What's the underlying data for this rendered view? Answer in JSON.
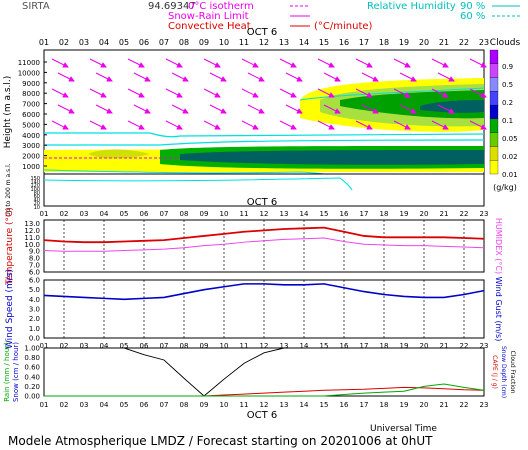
{
  "header": {
    "station": "SIRTA",
    "coords": "94.69347",
    "isotherm_label": "0°C isotherm",
    "snow_rain_label": "Snow-Rain Limit",
    "convective_label": "Convective Heat.",
    "convective_unit": "(°C/minute)",
    "rh_label": "Relative Humidity",
    "rh_90": "90 %",
    "rh_60": "60 %"
  },
  "footer": {
    "universal_time": "Universal Time",
    "model_title": "Modele Atmospherique LMDZ / Forecast starting on 20201006 at 0hUT"
  },
  "colors": {
    "cloud_light": "#ffff00",
    "cloud_mid": "#00b000",
    "cloud_dark": "#006060",
    "temperature": "#dd0000",
    "humidex": "#ee44ee",
    "wind": "#0000cc",
    "humidity": "#00e0e0",
    "isotherm": "#ff00ff",
    "snow": "#00aa00",
    "cloud_fraction": "#000000"
  },
  "chart_data": [
    {
      "type": "heatmap",
      "panel": "clouds",
      "date_label": "OCT 6",
      "x_hours": [
        "01",
        "02",
        "03",
        "04",
        "05",
        "06",
        "07",
        "08",
        "09",
        "10",
        "11",
        "12",
        "13",
        "14",
        "15",
        "16",
        "17",
        "18",
        "19",
        "20",
        "21",
        "22",
        "23"
      ],
      "ylabel": "Height (m a.s.l.)",
      "y_ticks_upper": [
        11000,
        10000,
        9000,
        8000,
        7000,
        6000,
        5000,
        4000,
        3000,
        2000,
        1000
      ],
      "y_ticks_lower": [
        150,
        140,
        120,
        100,
        80,
        60,
        40,
        20,
        10
      ],
      "ylabel_lower": "Up to 200 m a.s.l.",
      "colorbar_title": "Clouds",
      "colorbar_unit": "(g/kg)",
      "colorbar_ticks": [
        "0.9",
        "0.5",
        "0.2",
        "0.1",
        "0.05",
        "0.02",
        "0.01"
      ],
      "cloud_layers": [
        {
          "name": "upper",
          "x_start": 15,
          "x_end": 23,
          "base_m": 6800,
          "top_m": 9000
        },
        {
          "name": "low",
          "x_start": 7,
          "x_end": 23,
          "base_m": 900,
          "top_m": 2200
        },
        {
          "name": "early",
          "x_start": 1,
          "x_end": 8,
          "base_m": 1000,
          "top_m": 1800
        }
      ]
    },
    {
      "type": "line",
      "panel": "temperature",
      "xlabel": "",
      "ylabel": "Temperature (°C)",
      "ylabel_right": "HUMIDEX (°C)",
      "y_ticks": [
        "13.0",
        "12.0",
        "11.0",
        "10.0",
        "9.0",
        "8.0",
        "7.0",
        "6.0"
      ],
      "ylim": [
        6,
        13.5
      ],
      "x": [
        1,
        2,
        3,
        4,
        5,
        6,
        7,
        8,
        9,
        10,
        11,
        12,
        13,
        14,
        15,
        16,
        17,
        18,
        19,
        20,
        21,
        22,
        23
      ],
      "series": [
        {
          "name": "Temperature",
          "values": [
            10.6,
            10.4,
            10.3,
            10.3,
            10.4,
            10.5,
            10.6,
            10.9,
            11.2,
            11.5,
            11.8,
            12.0,
            12.2,
            12.3,
            12.4,
            11.8,
            11.2,
            11.0,
            11.0,
            11.0,
            11.0,
            10.9,
            10.8
          ]
        },
        {
          "name": "HUMIDEX",
          "values": [
            9.1,
            9.0,
            9.0,
            9.0,
            9.1,
            9.2,
            9.3,
            9.5,
            9.8,
            10.0,
            10.3,
            10.5,
            10.7,
            10.8,
            10.9,
            10.4,
            10.0,
            9.9,
            9.8,
            9.8,
            9.7,
            9.6,
            9.5
          ]
        }
      ]
    },
    {
      "type": "line",
      "panel": "wind",
      "ylabel": "Wind Speed (m/s)",
      "ylabel_right": "Wind Gust (m/s)",
      "y_ticks": [
        "6.0",
        "5.0",
        "4.0",
        "3.0",
        "2.0",
        "1.0",
        "0.0"
      ],
      "ylim": [
        0,
        6
      ],
      "x": [
        1,
        2,
        3,
        4,
        5,
        6,
        7,
        8,
        9,
        10,
        11,
        12,
        13,
        14,
        15,
        16,
        17,
        18,
        19,
        20,
        21,
        22,
        23
      ],
      "series": [
        {
          "name": "Wind Speed",
          "values": [
            4.4,
            4.3,
            4.2,
            4.1,
            4.0,
            4.1,
            4.2,
            4.6,
            5.0,
            5.3,
            5.6,
            5.6,
            5.5,
            5.5,
            5.6,
            5.2,
            4.8,
            4.5,
            4.3,
            4.2,
            4.2,
            4.5,
            4.9
          ]
        }
      ]
    },
    {
      "type": "line",
      "panel": "rain",
      "date_label": "OCT 6",
      "ylabel": "Rain (mm / hour)",
      "ylabel2": "Snow (cm / hour)",
      "ylabel_right": "CAPE (J / g)",
      "ylabel_right2": "Snow Depth (cm)",
      "ylabel_right3": "Cloud Fraction",
      "y_ticks": [
        "1.00",
        "0.80",
        "0.60",
        "0.40",
        "0.20",
        "0.00"
      ],
      "ylim": [
        0,
        1
      ],
      "x": [
        1,
        2,
        3,
        4,
        5,
        6,
        7,
        8,
        9,
        10,
        11,
        12,
        13,
        14,
        15,
        16,
        17,
        18,
        19,
        20,
        21,
        22,
        23
      ],
      "series": [
        {
          "name": "Cloud Fraction",
          "values": [
            1.0,
            1.0,
            1.0,
            1.0,
            1.0,
            0.86,
            0.75,
            0.37,
            0.0,
            0.35,
            0.68,
            0.9,
            1.0,
            1.0,
            1.0,
            1.0,
            1.0,
            1.0,
            1.0,
            1.0,
            1.0,
            1.0,
            1.0
          ]
        },
        {
          "name": "CAPE",
          "values": [
            0.0,
            0.0,
            0.0,
            0.0,
            0.0,
            0.0,
            0.0,
            0.0,
            0.0,
            0.02,
            0.04,
            0.06,
            0.08,
            0.1,
            0.12,
            0.13,
            0.14,
            0.16,
            0.18,
            0.17,
            0.15,
            0.13,
            0.12
          ]
        },
        {
          "name": "Rain",
          "values": [
            0,
            0,
            0,
            0,
            0,
            0,
            0,
            0,
            0,
            0,
            0,
            0,
            0,
            0,
            0,
            0.03,
            0.06,
            0.08,
            0.1,
            0.2,
            0.25,
            0.18,
            0.12
          ]
        }
      ]
    }
  ]
}
